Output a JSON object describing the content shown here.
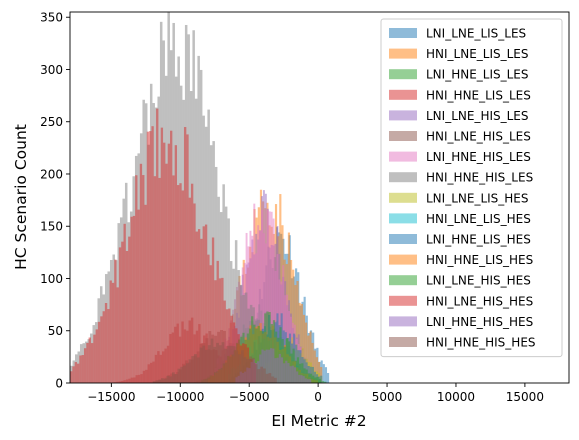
{
  "chart_data": {
    "type": "bar",
    "subtype": "overlapping histograms",
    "xlabel": "EI Metric #2",
    "ylabel": "HC Scenario Count",
    "xlim": [
      -18000,
      18200
    ],
    "ylim": [
      0,
      355
    ],
    "x_ticks": [
      -15000,
      -10000,
      -5000,
      0,
      5000,
      10000,
      15000
    ],
    "x_tick_labels": [
      "−15000",
      "−10000",
      "−5000",
      "0",
      "5000",
      "10000",
      "15000"
    ],
    "y_ticks": [
      0,
      50,
      100,
      150,
      200,
      250,
      300,
      350
    ],
    "y_tick_labels": [
      "0",
      "50",
      "100",
      "150",
      "200",
      "250",
      "300",
      "350"
    ],
    "bar_alpha": 0.5,
    "legend_position": "top-right",
    "series": [
      {
        "name": "LNI_LNE_LIS_LES",
        "color": "#1f77b4",
        "center": -2700,
        "sigma": 1500,
        "peak": 140,
        "min": -6000,
        "max": 800,
        "bins": 44,
        "seed": 11
      },
      {
        "name": "HNI_LNE_LIS_LES",
        "color": "#ff7f0e",
        "center": -3600,
        "sigma": 1800,
        "peak": 175,
        "min": -7500,
        "max": 300,
        "bins": 50,
        "seed": 23
      },
      {
        "name": "LNI_HNE_LIS_LES",
        "color": "#2ca02c",
        "center": -4200,
        "sigma": 1700,
        "peak": 65,
        "min": -9000,
        "max": 600,
        "bins": 60,
        "seed": 37
      },
      {
        "name": "HNI_HNE_LIS_LES",
        "color": "#d62728",
        "center": -9500,
        "sigma": 1800,
        "peak": 55,
        "min": -15000,
        "max": -4500,
        "bins": 60,
        "seed": 41
      },
      {
        "name": "LNI_LNE_HIS_LES",
        "color": "#9467bd",
        "center": -3900,
        "sigma": 1500,
        "peak": 160,
        "min": -7500,
        "max": -500,
        "bins": 50,
        "seed": 53
      },
      {
        "name": "HNI_LNE_HIS_LES",
        "color": "#8c564b",
        "center": -7300,
        "sigma": 1800,
        "peak": 45,
        "min": -12000,
        "max": -3500,
        "bins": 40,
        "seed": 59
      },
      {
        "name": "LNI_HNE_HIS_LES",
        "color": "#e377c2",
        "center": -4100,
        "sigma": 1600,
        "peak": 155,
        "min": -7500,
        "max": -500,
        "bins": 50,
        "seed": 67
      },
      {
        "name": "HNI_HNE_HIS_LES",
        "color": "#7f7f7f",
        "center": -10400,
        "sigma": 3200,
        "peak": 315,
        "min": -18000,
        "max": -3500,
        "bins": 80,
        "seed": 71
      },
      {
        "name": "LNI_LNE_LIS_HES",
        "color": "#bcbd22",
        "center": -2200,
        "sigma": 1300,
        "peak": 40,
        "min": -4200,
        "max": 300,
        "bins": 30,
        "seed": 79
      },
      {
        "name": "HNI_LNE_LIS_HES",
        "color": "#17becf",
        "center": -3800,
        "sigma": 1600,
        "peak": 40,
        "min": -6500,
        "max": -500,
        "bins": 40,
        "seed": 83
      },
      {
        "name": "LNI_HNE_LIS_HES",
        "color": "#1f77b4",
        "center": -3000,
        "sigma": 1500,
        "peak": 60,
        "min": -6500,
        "max": 300,
        "bins": 45,
        "seed": 89
      },
      {
        "name": "HNI_HNE_LIS_HES",
        "color": "#ff7f0e",
        "center": -4200,
        "sigma": 1700,
        "peak": 55,
        "min": -8000,
        "max": 0,
        "bins": 45,
        "seed": 97
      },
      {
        "name": "LNI_LNE_HIS_HES",
        "color": "#2ca02c",
        "center": -4000,
        "sigma": 1800,
        "peak": 60,
        "min": -8500,
        "max": 200,
        "bins": 55,
        "seed": 101
      },
      {
        "name": "HNI_LNE_HIS_HES",
        "color": "#d62728",
        "center": -11000,
        "sigma": 2900,
        "peak": 235,
        "min": -18000,
        "max": -4500,
        "bins": 80,
        "seed": 103
      },
      {
        "name": "LNI_HNE_HIS_HES",
        "color": "#9467bd",
        "center": -3500,
        "sigma": 1400,
        "peak": 30,
        "min": -6000,
        "max": -500,
        "bins": 35,
        "seed": 107
      },
      {
        "name": "HNI_HNE_HIS_HES",
        "color": "#8c564b",
        "center": -7000,
        "sigma": 2000,
        "peak": 40,
        "min": -12000,
        "max": -3000,
        "bins": 45,
        "seed": 109
      }
    ]
  }
}
